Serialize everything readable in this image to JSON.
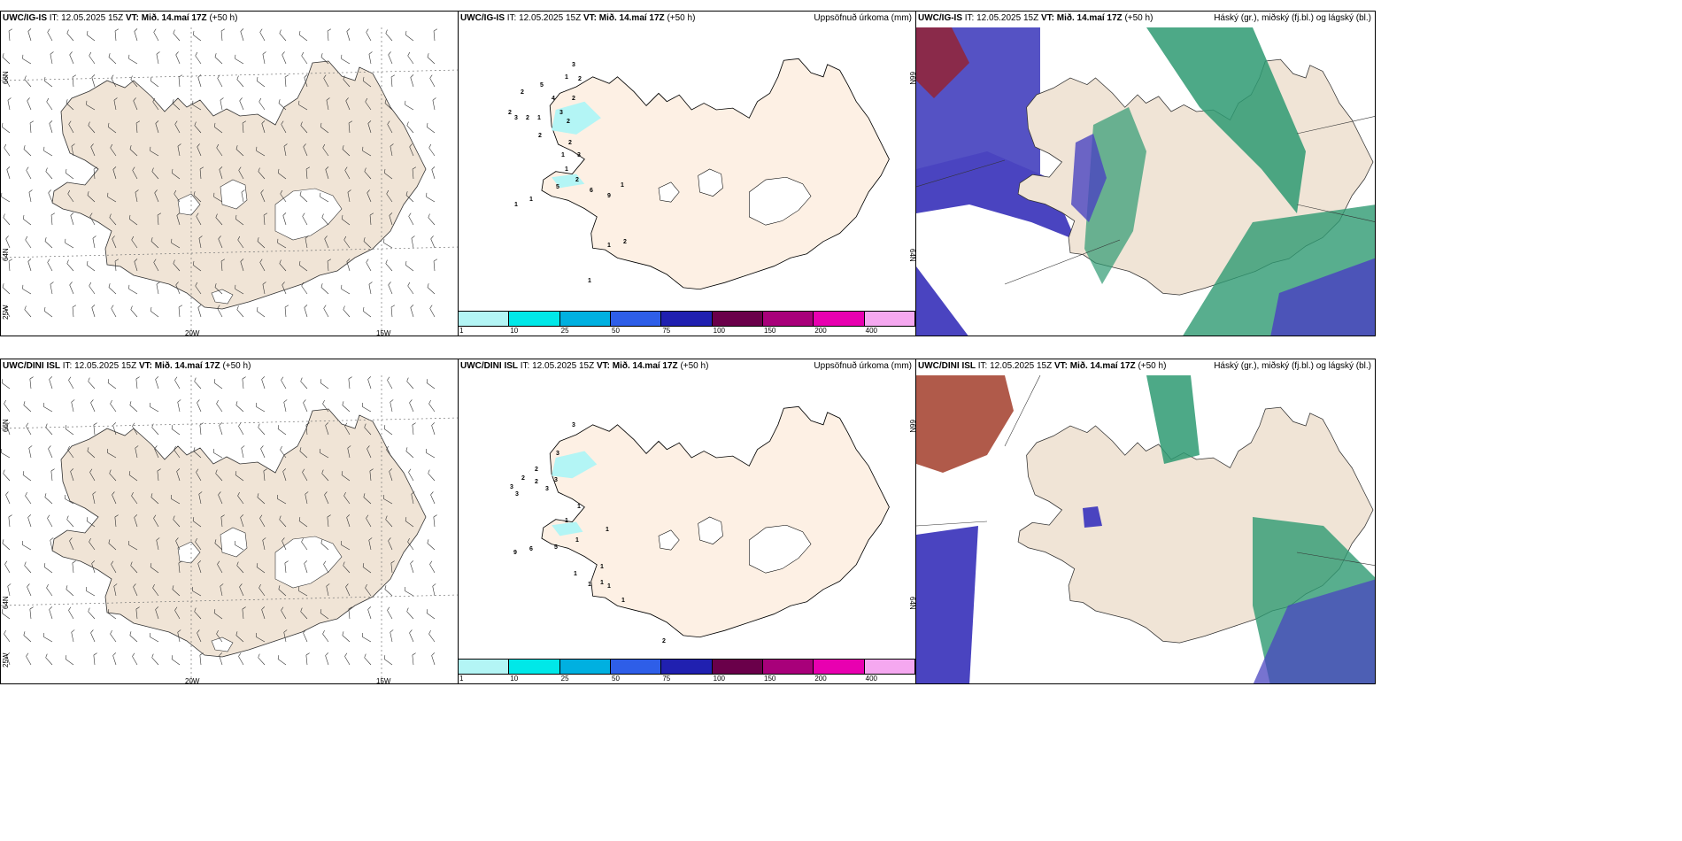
{
  "rows": [
    {
      "wind": {
        "model": "UWC/IG-IS",
        "it": "IT: 12.05.2025 15Z",
        "vt": "VT: Mið. 14.maí 17Z",
        "lead": "(+50 h)"
      },
      "precip": {
        "model": "UWC/IG-IS",
        "it": "IT: 12.05.2025 15Z",
        "vt": "VT: Mið. 14.maí 17Z",
        "lead": "(+50 h)",
        "title": "Uppsöfnuð úrkoma (mm)"
      },
      "cloud": {
        "model": "UWC/IG-IS",
        "it": "IT: 12.05.2025 15Z",
        "vt": "VT: Mið. 14.maí 17Z",
        "lead": "(+50 h)",
        "title": "Háský (gr.), miðský (fj.bl.) og lágský (bl.)"
      }
    },
    {
      "wind": {
        "model": "UWC/DINI ISL",
        "it": "IT: 12.05.2025 15Z",
        "vt": "VT: Mið. 14.maí 17Z",
        "lead": "(+50 h)"
      },
      "precip": {
        "model": "UWC/DINI ISL",
        "it": "IT: 12.05.2025 15Z",
        "vt": "VT: Mið. 14.maí 17Z",
        "lead": "(+50 h)",
        "title": "Uppsöfnuð úrkoma (mm)"
      },
      "cloud": {
        "model": "UWC/DINI ISL",
        "it": "IT: 12.05.2025 15Z",
        "vt": "VT: Mið. 14.maí 17Z",
        "lead": "(+50 h)",
        "title": "Háský (gr.), miðský (fj.bl.) og lágský (bl.)"
      }
    }
  ],
  "grid_labels": {
    "lat66": "66N",
    "lat64": "64N",
    "lon25": "25W",
    "lon20": "20W",
    "lon15": "15W"
  },
  "colorbar": {
    "ticks": [
      "1",
      "10",
      "25",
      "50",
      "75",
      "100",
      "150",
      "200",
      "400"
    ],
    "colors": [
      "#b3f5f5",
      "#00e8e8",
      "#00b0e0",
      "#2e5ee8",
      "#2020b0",
      "#6a004a",
      "#a8007a",
      "#e800b0",
      "#f5a8f0"
    ]
  },
  "precip_numbers": {
    "row1": [
      "3",
      "1",
      "2",
      "5",
      "2",
      "4",
      "2",
      "3",
      "2",
      "2",
      "3",
      "2",
      "1",
      "2",
      "2",
      "1",
      "3",
      "1",
      "2",
      "5",
      "1",
      "1",
      "6",
      "9",
      "1",
      "1",
      "2",
      "1"
    ],
    "row2": [
      "3",
      "3",
      "2",
      "2",
      "3",
      "3",
      "2",
      "3",
      "3",
      "1",
      "1",
      "1",
      "1",
      "9",
      "6",
      "5",
      "1",
      "1",
      "1",
      "1",
      "1",
      "1",
      "2"
    ]
  },
  "colors": {
    "land": "#f0e4d6",
    "water": "#ffffff",
    "high_cloud": "#2e9a72",
    "mid_cloud": "#4a44c0",
    "low_cloud": "#8a2a4a",
    "precip_land": "#fdf0e4"
  }
}
